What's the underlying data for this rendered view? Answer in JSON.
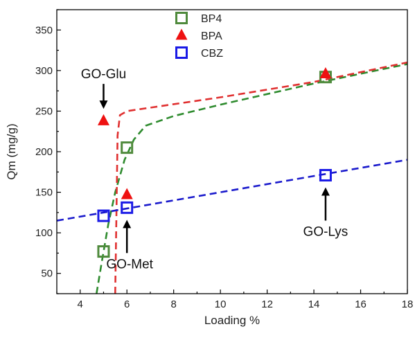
{
  "chart_data": {
    "type": "scatter",
    "xlabel": "Loading %",
    "ylabel": "Qm (mg/g)",
    "xlim": [
      3,
      18
    ],
    "ylim": [
      25,
      375
    ],
    "xticks": [
      4,
      6,
      8,
      10,
      12,
      14,
      16,
      18
    ],
    "yticks": [
      50,
      100,
      150,
      200,
      250,
      300,
      350
    ],
    "grid": false,
    "legend_position": "top-center",
    "series": [
      {
        "name": "BP4",
        "marker": "open-square",
        "color": "#4f8a3c",
        "points": [
          [
            5,
            77
          ],
          [
            6,
            205
          ],
          [
            14.5,
            292
          ]
        ],
        "fit": {
          "color": "#2e8b2e",
          "points": [
            [
              4.7,
              25
            ],
            [
              4.9,
              60
            ],
            [
              5.2,
              110
            ],
            [
              5.5,
              150
            ],
            [
              5.9,
              190
            ],
            [
              6.3,
              215
            ],
            [
              6.8,
              232
            ],
            [
              8,
              244
            ],
            [
              10,
              258
            ],
            [
              12,
              271
            ],
            [
              14,
              284
            ],
            [
              16,
              296
            ],
            [
              18,
              308
            ]
          ]
        }
      },
      {
        "name": "BPA",
        "marker": "filled-triangle",
        "color": "#ee1111",
        "points": [
          [
            5,
            238
          ],
          [
            6,
            147
          ],
          [
            14.5,
            296
          ]
        ],
        "fit": {
          "color": "#e03030",
          "points": [
            [
              5.5,
              25
            ],
            [
              5.55,
              120
            ],
            [
              5.6,
              220
            ],
            [
              5.7,
              245
            ],
            [
              6,
              250
            ],
            [
              10,
              267
            ],
            [
              14,
              286
            ],
            [
              18,
              310
            ]
          ]
        }
      },
      {
        "name": "CBZ",
        "marker": "open-square",
        "color": "#1a1ae6",
        "points": [
          [
            5,
            121
          ],
          [
            6,
            131
          ],
          [
            14.5,
            171
          ]
        ],
        "fit": {
          "color": "#1a1acc",
          "points": [
            [
              3,
              115
            ],
            [
              18,
              190
            ]
          ]
        }
      }
    ],
    "annotations": [
      {
        "text": "GO-Glu",
        "x": 5,
        "y": 240,
        "direction": "down"
      },
      {
        "text": "GO-Met",
        "x": 6,
        "y": 128,
        "direction": "up"
      },
      {
        "text": "GO-Lys",
        "x": 14.5,
        "y": 168,
        "direction": "up"
      }
    ]
  }
}
